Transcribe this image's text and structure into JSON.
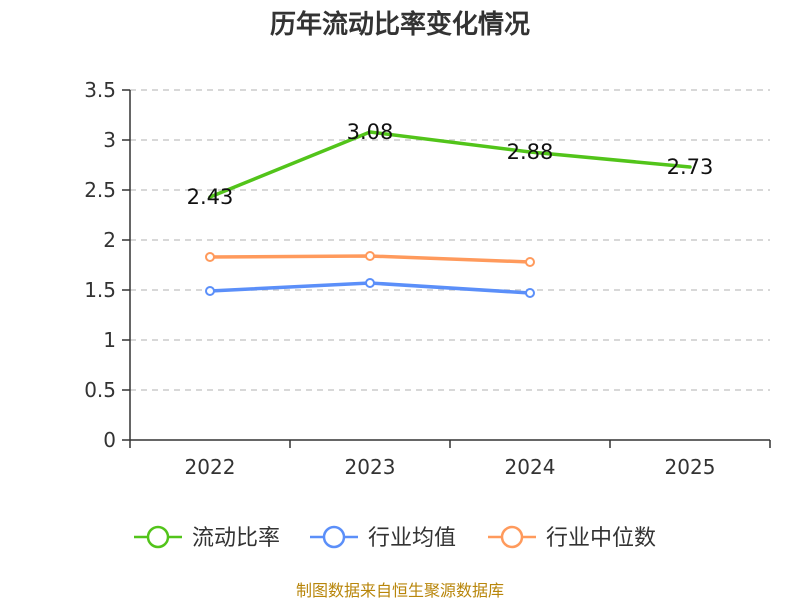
{
  "chart_data": {
    "type": "line",
    "title": "历年流动比率变化情况",
    "categories": [
      "2022",
      "2023",
      "2024",
      "2025"
    ],
    "ylim": [
      0,
      3.5
    ],
    "yticks": [
      "0",
      "0.5",
      "1",
      "1.5",
      "2",
      "2.5",
      "3",
      "3.5"
    ],
    "ytick_values": [
      0,
      0.5,
      1,
      1.5,
      2,
      2.5,
      3,
      3.5
    ],
    "grid": true,
    "legend_position": "bottom",
    "series": [
      {
        "name": "流动比率",
        "color": "#52c41a",
        "values": [
          2.43,
          3.08,
          2.88,
          2.73
        ],
        "labels": [
          "2.43",
          "3.08",
          "2.88",
          "2.73"
        ],
        "show_markers": false
      },
      {
        "name": "行业均值",
        "color": "#5b8ff9",
        "values": [
          1.49,
          1.57,
          1.47,
          null
        ],
        "show_markers": true
      },
      {
        "name": "行业中位数",
        "color": "#ff9a5c",
        "values": [
          1.83,
          1.84,
          1.78,
          null
        ],
        "show_markers": true
      }
    ]
  },
  "source_text": "制图数据来自恒生聚源数据库"
}
